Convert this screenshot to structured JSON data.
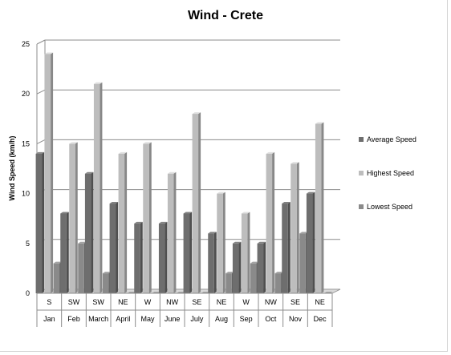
{
  "chart_data": {
    "type": "bar",
    "title": "Wind - Crete",
    "ylabel": "Wind Speed (km/h)",
    "xlabel": "",
    "ylim": [
      0,
      25
    ],
    "yticks": [
      0,
      5,
      10,
      15,
      20,
      25
    ],
    "grid": true,
    "legend_position": "right",
    "categories": [
      "Jan",
      "Feb",
      "March",
      "April",
      "May",
      "June",
      "July",
      "Aug",
      "Sep",
      "Oct",
      "Nov",
      "Dec"
    ],
    "directions": [
      "S",
      "SW",
      "SW",
      "NE",
      "W",
      "NW",
      "SE",
      "NE",
      "W",
      "NW",
      "SE",
      "NE"
    ],
    "series": [
      {
        "name": "Average Speed",
        "color": "#6e6e6e",
        "values": [
          14,
          8,
          12,
          9,
          7,
          7,
          8,
          6,
          5,
          5,
          9,
          10
        ]
      },
      {
        "name": "Highest Speed",
        "color": "#bdbdbd",
        "values": [
          24,
          15,
          21,
          14,
          15,
          12,
          18,
          10,
          8,
          14,
          13,
          17
        ]
      },
      {
        "name": "Lowest Speed",
        "color": "#8a8a8a",
        "values": [
          3,
          5,
          2,
          0,
          0,
          0,
          0,
          2,
          3,
          2,
          6,
          0
        ]
      }
    ]
  }
}
